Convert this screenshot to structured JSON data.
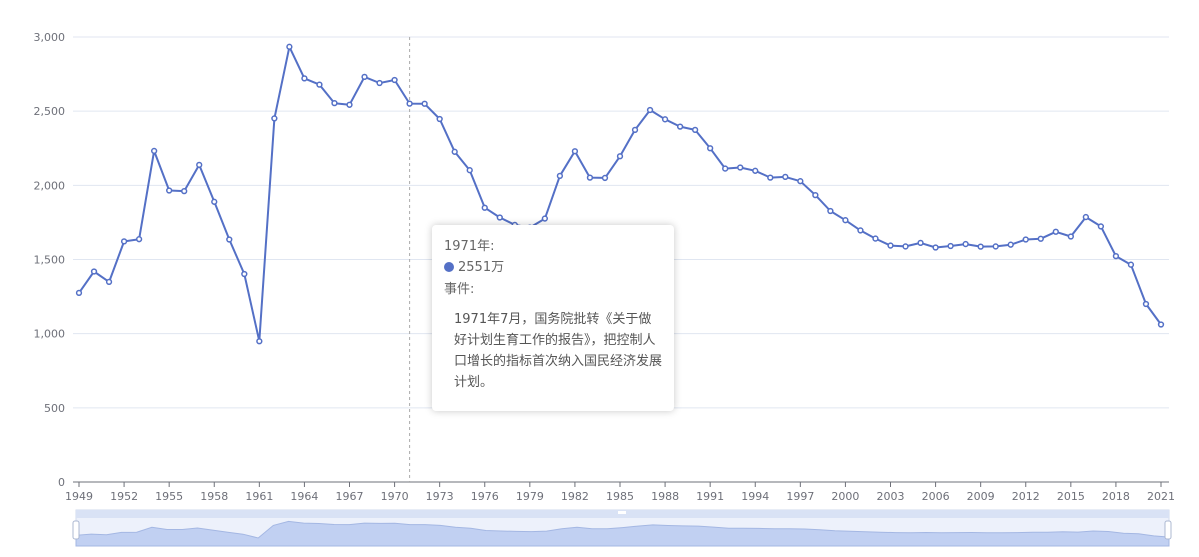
{
  "chart_data": {
    "type": "line",
    "x": [
      "1949",
      "1950",
      "1951",
      "1952",
      "1953",
      "1954",
      "1955",
      "1956",
      "1957",
      "1958",
      "1959",
      "1960",
      "1961",
      "1962",
      "1963",
      "1964",
      "1965",
      "1966",
      "1967",
      "1968",
      "1969",
      "1970",
      "1971",
      "1972",
      "1973",
      "1974",
      "1975",
      "1976",
      "1977",
      "1978",
      "1979",
      "1980",
      "1981",
      "1982",
      "1983",
      "1984",
      "1985",
      "1986",
      "1987",
      "1988",
      "1989",
      "1990",
      "1991",
      "1992",
      "1993",
      "1994",
      "1995",
      "1996",
      "1997",
      "1998",
      "1999",
      "2000",
      "2001",
      "2002",
      "2003",
      "2004",
      "2005",
      "2006",
      "2007",
      "2008",
      "2009",
      "2010",
      "2011",
      "2012",
      "2013",
      "2014",
      "2015",
      "2016",
      "2017",
      "2018",
      "2019",
      "2020",
      "2021"
    ],
    "x_tick_labels": [
      "1949",
      "1952",
      "1955",
      "1958",
      "1961",
      "1964",
      "1967",
      "1970",
      "1973",
      "1976",
      "1979",
      "1982",
      "1985",
      "1988",
      "1991",
      "1994",
      "1997",
      "2000",
      "2003",
      "2006",
      "2009",
      "2012",
      "2015",
      "2018",
      "2021"
    ],
    "series": [
      {
        "values": [
          1275,
          1419,
          1349,
          1622,
          1637,
          2232,
          1965,
          1961,
          2138,
          1889,
          1635,
          1402,
          949,
          2451,
          2934,
          2721,
          2679,
          2554,
          2543,
          2731,
          2690,
          2710,
          2551,
          2550,
          2447,
          2226,
          2102,
          1849,
          1783,
          1733,
          1715,
          1776,
          2064,
          2230,
          2052,
          2050,
          2196,
          2374,
          2508,
          2445,
          2396,
          2374,
          2250,
          2113,
          2120,
          2098,
          2052,
          2057,
          2028,
          1934,
          1827,
          1765,
          1696,
          1641,
          1594,
          1588,
          1612,
          1581,
          1591,
          1604,
          1587,
          1588,
          1600,
          1635,
          1640,
          1687,
          1655,
          1786,
          1723,
          1523,
          1465,
          1200,
          1062
        ],
        "color": "#5470c6"
      }
    ],
    "y_ticks": [
      "0",
      "500",
      "1,000",
      "1,500",
      "2,000",
      "2,500",
      "3,000"
    ],
    "ylim": [
      0,
      3000
    ],
    "grid": true,
    "tooltip": {
      "title": "1971年:",
      "value": "2551万",
      "event_label": "事件:",
      "event_text": "1971年7月，国务院批转《关于做好计划生育工作的报告》，把控制人口增长的指标首次纳入国民经济发展计划。"
    },
    "highlight_year": "1971"
  }
}
